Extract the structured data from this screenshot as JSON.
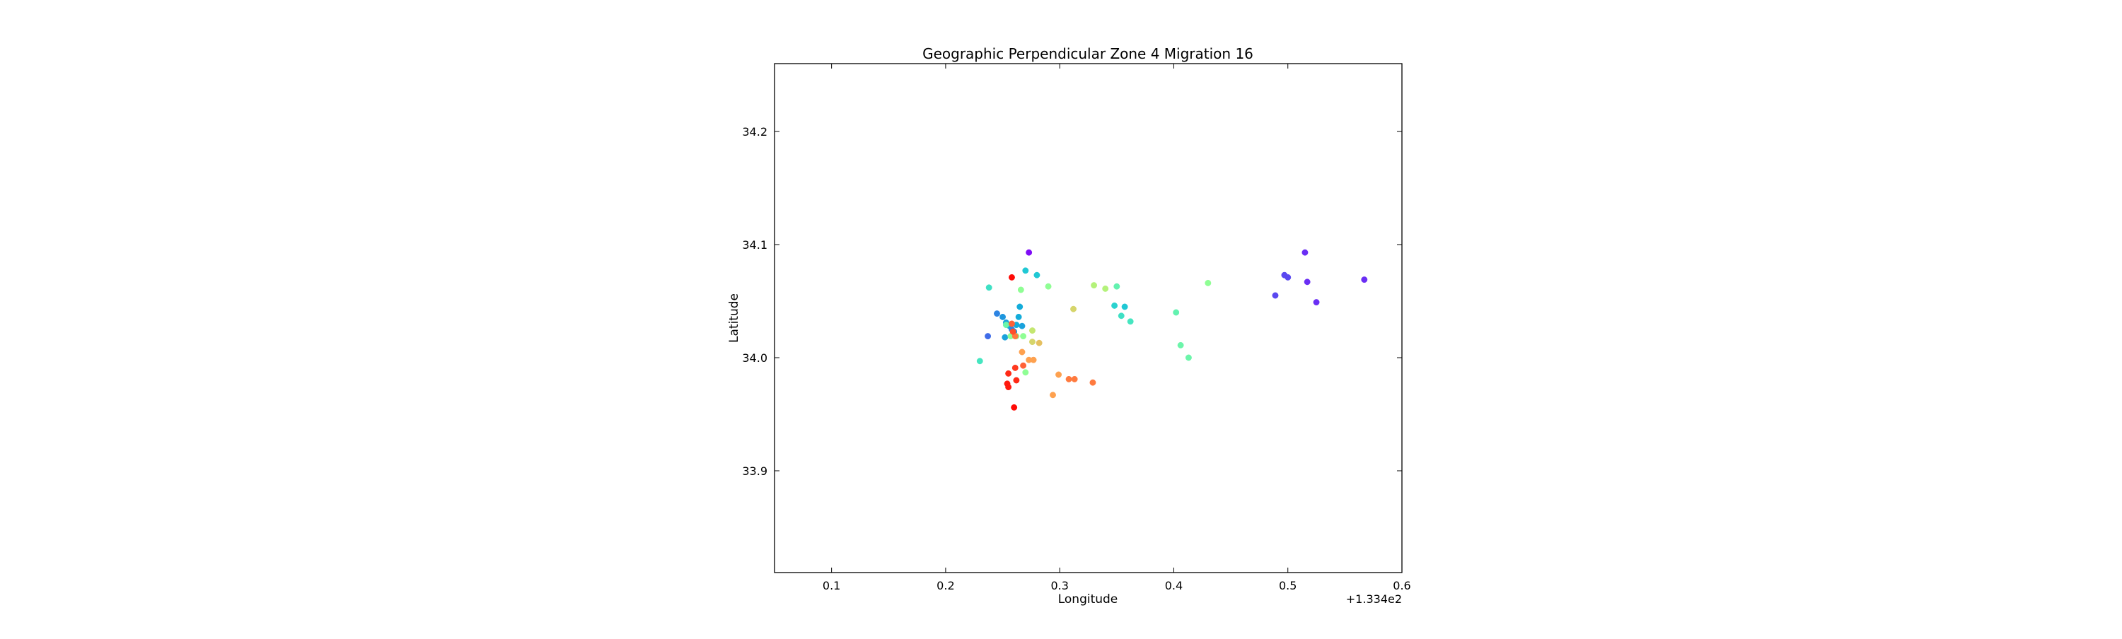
{
  "chart_data": {
    "type": "scatter",
    "title": "Geographic Perpendicular Zone 4 Migration 16",
    "xlabel": "Longitude",
    "ylabel": "Latitude",
    "x_offset_label": "+1.334e2",
    "xlim": [
      0.05,
      0.6
    ],
    "ylim": [
      33.81,
      34.26
    ],
    "xticks": [
      0.1,
      0.2,
      0.3,
      0.4,
      0.5,
      0.6
    ],
    "xtick_labels": [
      "0.1",
      "0.2",
      "0.3",
      "0.4",
      "0.5",
      "0.6"
    ],
    "yticks": [
      33.9,
      34.0,
      34.1,
      34.2
    ],
    "ytick_labels": [
      "33.9",
      "34.0",
      "34.1",
      "34.2"
    ],
    "grid": false,
    "colormap": "rainbow",
    "points": [
      {
        "x": 0.273,
        "y": 34.093,
        "color": "#7f0cf6"
      },
      {
        "x": 0.515,
        "y": 34.093,
        "color": "#6a2ef4"
      },
      {
        "x": 0.567,
        "y": 34.069,
        "color": "#6a2ef4"
      },
      {
        "x": 0.517,
        "y": 34.067,
        "color": "#6a2ef4"
      },
      {
        "x": 0.497,
        "y": 34.073,
        "color": "#5a48f0"
      },
      {
        "x": 0.5,
        "y": 34.071,
        "color": "#5a48f0"
      },
      {
        "x": 0.489,
        "y": 34.055,
        "color": "#5a48f0"
      },
      {
        "x": 0.525,
        "y": 34.049,
        "color": "#6a2ef4"
      },
      {
        "x": 0.237,
        "y": 34.019,
        "color": "#3f6ce8"
      },
      {
        "x": 0.245,
        "y": 34.039,
        "color": "#2d84e2"
      },
      {
        "x": 0.25,
        "y": 34.036,
        "color": "#1e96de"
      },
      {
        "x": 0.253,
        "y": 34.031,
        "color": "#1aa2dc"
      },
      {
        "x": 0.252,
        "y": 34.018,
        "color": "#1aa2dc"
      },
      {
        "x": 0.256,
        "y": 34.028,
        "color": "#13acda"
      },
      {
        "x": 0.258,
        "y": 34.025,
        "color": "#2d84e2"
      },
      {
        "x": 0.26,
        "y": 34.023,
        "color": "#1e96de"
      },
      {
        "x": 0.262,
        "y": 34.029,
        "color": "#13acda"
      },
      {
        "x": 0.264,
        "y": 34.036,
        "color": "#13acda"
      },
      {
        "x": 0.265,
        "y": 34.045,
        "color": "#13acda"
      },
      {
        "x": 0.267,
        "y": 34.028,
        "color": "#1aa2dc"
      },
      {
        "x": 0.27,
        "y": 34.077,
        "color": "#20c8d4"
      },
      {
        "x": 0.28,
        "y": 34.073,
        "color": "#20c8d4"
      },
      {
        "x": 0.238,
        "y": 34.062,
        "color": "#3ee0c4"
      },
      {
        "x": 0.23,
        "y": 33.997,
        "color": "#45e6c0"
      },
      {
        "x": 0.357,
        "y": 34.045,
        "color": "#20c8d4"
      },
      {
        "x": 0.348,
        "y": 34.046,
        "color": "#2ad2cf"
      },
      {
        "x": 0.354,
        "y": 34.037,
        "color": "#3ee0c4"
      },
      {
        "x": 0.362,
        "y": 34.032,
        "color": "#45e6c0"
      },
      {
        "x": 0.35,
        "y": 34.063,
        "color": "#63f2b0"
      },
      {
        "x": 0.402,
        "y": 34.04,
        "color": "#63f2b0"
      },
      {
        "x": 0.406,
        "y": 34.011,
        "color": "#6cf5aa"
      },
      {
        "x": 0.413,
        "y": 34.0,
        "color": "#6cf5aa"
      },
      {
        "x": 0.253,
        "y": 34.029,
        "color": "#6cf5aa"
      },
      {
        "x": 0.268,
        "y": 34.019,
        "color": "#8ffe94"
      },
      {
        "x": 0.262,
        "y": 34.019,
        "color": "#8ffe94"
      },
      {
        "x": 0.257,
        "y": 34.019,
        "color": "#8ffe94"
      },
      {
        "x": 0.266,
        "y": 34.06,
        "color": "#8ffe94"
      },
      {
        "x": 0.29,
        "y": 34.063,
        "color": "#8ffe94"
      },
      {
        "x": 0.33,
        "y": 34.064,
        "color": "#b4f27a"
      },
      {
        "x": 0.34,
        "y": 34.061,
        "color": "#b4f27a"
      },
      {
        "x": 0.43,
        "y": 34.066,
        "color": "#8ffe94"
      },
      {
        "x": 0.312,
        "y": 34.043,
        "color": "#d6d56a"
      },
      {
        "x": 0.27,
        "y": 33.987,
        "color": "#8ffe94"
      },
      {
        "x": 0.276,
        "y": 34.024,
        "color": "#c4e770"
      },
      {
        "x": 0.276,
        "y": 34.014,
        "color": "#d6d56a"
      },
      {
        "x": 0.282,
        "y": 34.013,
        "color": "#e5c060"
      },
      {
        "x": 0.267,
        "y": 34.005,
        "color": "#fea14f"
      },
      {
        "x": 0.273,
        "y": 33.998,
        "color": "#fea14f"
      },
      {
        "x": 0.277,
        "y": 33.998,
        "color": "#fea14f"
      },
      {
        "x": 0.299,
        "y": 33.985,
        "color": "#fea14f"
      },
      {
        "x": 0.294,
        "y": 33.967,
        "color": "#fea14f"
      },
      {
        "x": 0.308,
        "y": 33.981,
        "color": "#ff7a3e"
      },
      {
        "x": 0.313,
        "y": 33.981,
        "color": "#ff7a3e"
      },
      {
        "x": 0.329,
        "y": 33.978,
        "color": "#ff7a3e"
      },
      {
        "x": 0.261,
        "y": 34.019,
        "color": "#ff7a3e"
      },
      {
        "x": 0.258,
        "y": 34.03,
        "color": "#ff6236"
      },
      {
        "x": 0.259,
        "y": 34.023,
        "color": "#ff4e2a"
      },
      {
        "x": 0.268,
        "y": 33.993,
        "color": "#ff6236"
      },
      {
        "x": 0.261,
        "y": 33.991,
        "color": "#ff3a20"
      },
      {
        "x": 0.255,
        "y": 33.986,
        "color": "#ff2a16"
      },
      {
        "x": 0.262,
        "y": 33.98,
        "color": "#ff2a16"
      },
      {
        "x": 0.254,
        "y": 33.977,
        "color": "#ff1a0e"
      },
      {
        "x": 0.255,
        "y": 33.974,
        "color": "#ff1a0e"
      },
      {
        "x": 0.26,
        "y": 33.956,
        "color": "#ff0a06"
      },
      {
        "x": 0.258,
        "y": 34.071,
        "color": "#ff0a06"
      }
    ]
  }
}
